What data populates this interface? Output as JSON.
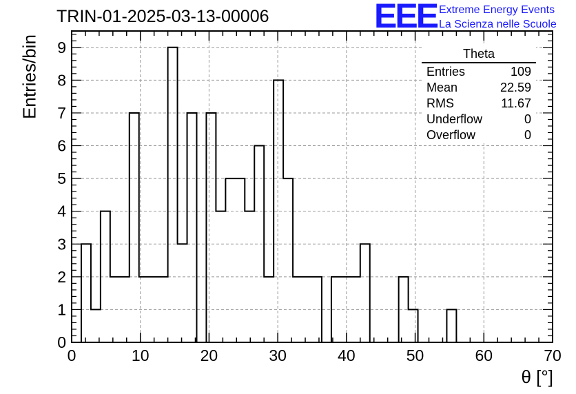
{
  "header": {
    "run_title": "TRIN-01-2025-03-13-00006",
    "logo_text": "EEE",
    "brand_line1": "Extreme Energy Events",
    "brand_line2": "La Scienza nelle Scuole",
    "brand_color": "#1a1aff"
  },
  "stats": {
    "title": "Theta",
    "rows": [
      {
        "label": "Entries",
        "value": "109"
      },
      {
        "label": "Mean",
        "value": "22.59"
      },
      {
        "label": "RMS",
        "value": "11.67"
      },
      {
        "label": "Underflow",
        "value": "0"
      },
      {
        "label": "Overflow",
        "value": "0"
      }
    ]
  },
  "chart_data": {
    "type": "bar",
    "title": "TRIN-01-2025-03-13-00006",
    "xlabel": "θ [°]",
    "ylabel": "Entries/bin",
    "xlim": [
      0,
      70
    ],
    "ylim": [
      0,
      9.5
    ],
    "grid": true,
    "legend_position": "top-right",
    "bin_width": 1.4,
    "bin_edges_start": 1.4,
    "values": [
      3,
      1,
      4,
      2,
      2,
      7,
      2,
      2,
      2,
      9,
      3,
      7,
      0,
      7,
      4,
      5,
      5,
      4,
      6,
      2,
      8,
      5,
      2,
      2,
      2,
      0,
      2,
      2,
      2,
      3,
      0,
      0,
      0,
      2,
      1,
      0,
      0,
      0,
      1
    ],
    "x_ticks": [
      0,
      10,
      20,
      30,
      40,
      50,
      60,
      70
    ],
    "y_ticks": [
      0,
      1,
      2,
      3,
      4,
      5,
      6,
      7,
      8,
      9
    ]
  }
}
